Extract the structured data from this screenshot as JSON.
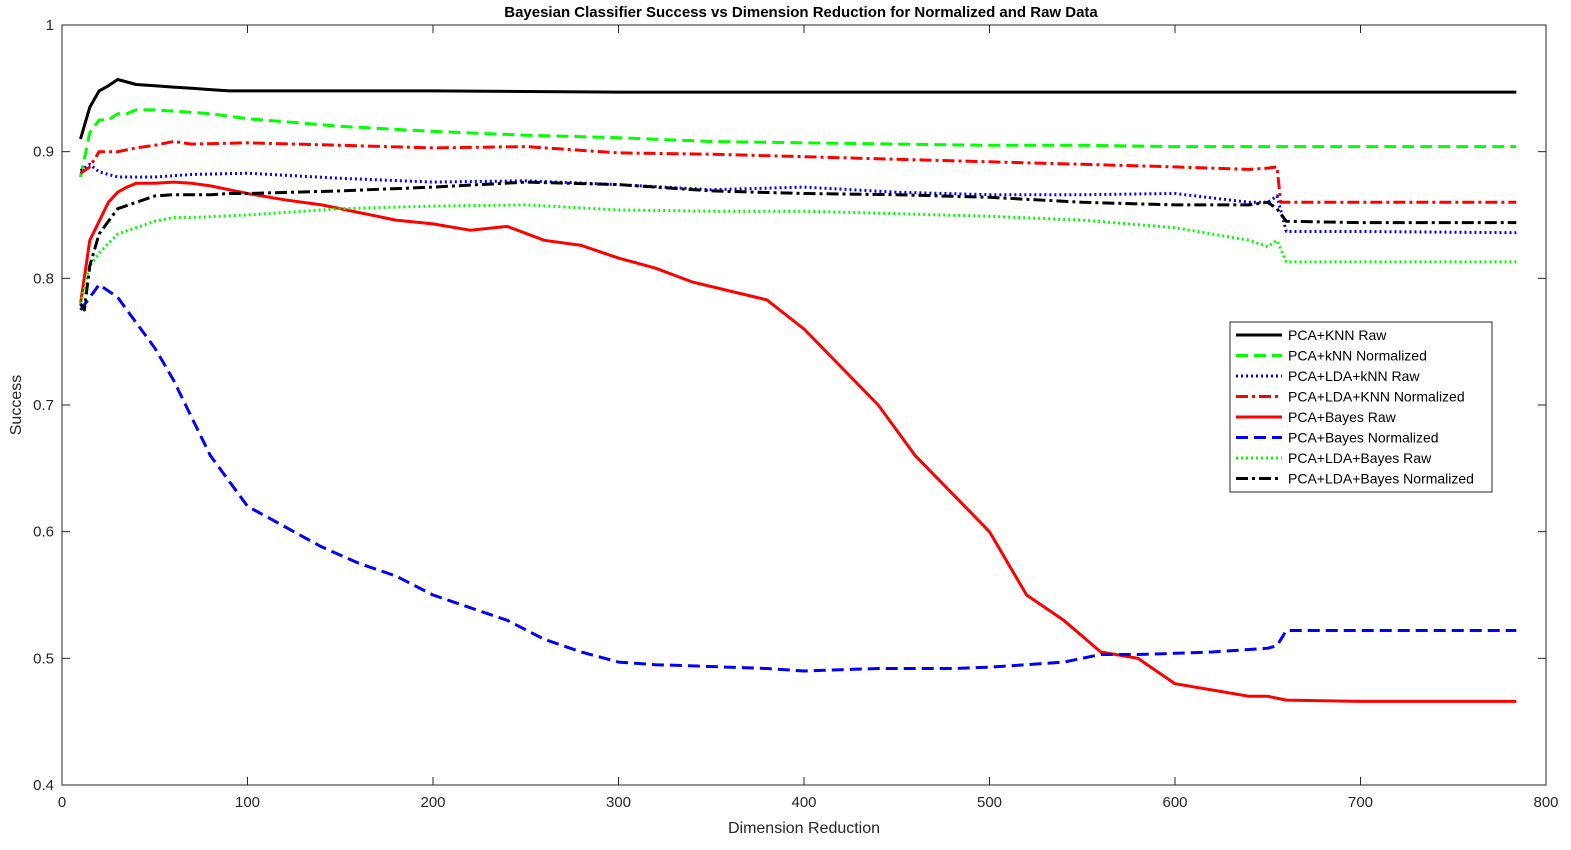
{
  "chart_data": {
    "type": "line",
    "title": "Bayesian Classifier Success vs Dimension Reduction for Normalized and Raw Data",
    "xlabel": "Dimension Reduction",
    "ylabel": "Success",
    "xlim": [
      0,
      800
    ],
    "ylim": [
      0.4,
      1
    ],
    "xticks": [
      0,
      100,
      200,
      300,
      400,
      500,
      600,
      700,
      800
    ],
    "yticks": [
      0.4,
      0.5,
      0.6,
      0.7,
      0.8,
      0.9,
      1
    ],
    "xtick_labels": [
      "0",
      "100",
      "200",
      "300",
      "400",
      "500",
      "600",
      "700",
      "800"
    ],
    "ytick_labels": [
      "0.4",
      "0.5",
      "0.6",
      "0.7",
      "0.8",
      "0.9",
      "1"
    ],
    "grid": false,
    "legend_position": "right",
    "series": [
      {
        "name": "PCA+KNN Raw",
        "color": "#000000",
        "style": "solid",
        "x": [
          10,
          15,
          20,
          25,
          30,
          35,
          40,
          50,
          60,
          70,
          80,
          90,
          100,
          150,
          200,
          300,
          400,
          500,
          600,
          700,
          784
        ],
        "y": [
          0.91,
          0.935,
          0.948,
          0.952,
          0.957,
          0.955,
          0.953,
          0.952,
          0.951,
          0.95,
          0.949,
          0.948,
          0.948,
          0.948,
          0.948,
          0.947,
          0.947,
          0.947,
          0.947,
          0.947,
          0.947
        ]
      },
      {
        "name": "PCA+kNN Normalized",
        "color": "#00ff00",
        "style": "dashed",
        "x": [
          10,
          15,
          20,
          25,
          30,
          35,
          40,
          50,
          60,
          70,
          80,
          100,
          150,
          200,
          250,
          300,
          350,
          400,
          450,
          500,
          550,
          600,
          650,
          700,
          784
        ],
        "y": [
          0.88,
          0.915,
          0.925,
          0.925,
          0.93,
          0.93,
          0.933,
          0.933,
          0.932,
          0.931,
          0.93,
          0.926,
          0.92,
          0.916,
          0.913,
          0.911,
          0.908,
          0.907,
          0.906,
          0.905,
          0.905,
          0.904,
          0.904,
          0.904,
          0.904
        ]
      },
      {
        "name": "PCA+LDA+kNN Raw",
        "color": "#0000ff",
        "style": "dotted",
        "x": [
          10,
          15,
          20,
          30,
          50,
          70,
          100,
          150,
          200,
          250,
          300,
          350,
          400,
          450,
          500,
          550,
          600,
          640,
          650,
          655,
          660,
          700,
          784
        ],
        "y": [
          0.885,
          0.89,
          0.884,
          0.88,
          0.88,
          0.882,
          0.883,
          0.879,
          0.876,
          0.877,
          0.874,
          0.87,
          0.872,
          0.868,
          0.866,
          0.866,
          0.867,
          0.86,
          0.86,
          0.865,
          0.837,
          0.837,
          0.836
        ]
      },
      {
        "name": "PCA+LDA+KNN Normalized",
        "color": "#ff0000",
        "style": "dashdot",
        "x": [
          10,
          15,
          20,
          30,
          40,
          50,
          60,
          70,
          100,
          150,
          200,
          250,
          300,
          350,
          400,
          450,
          500,
          550,
          600,
          640,
          650,
          655,
          657,
          700,
          784
        ],
        "y": [
          0.883,
          0.888,
          0.9,
          0.9,
          0.903,
          0.905,
          0.908,
          0.906,
          0.907,
          0.905,
          0.903,
          0.904,
          0.899,
          0.898,
          0.896,
          0.894,
          0.892,
          0.89,
          0.888,
          0.886,
          0.887,
          0.888,
          0.86,
          0.86,
          0.86
        ]
      },
      {
        "name": "PCA+Bayes Raw",
        "color": "#ff0000",
        "style": "solid",
        "x": [
          10,
          15,
          20,
          25,
          30,
          35,
          40,
          50,
          60,
          70,
          80,
          90,
          100,
          120,
          140,
          160,
          180,
          200,
          220,
          240,
          260,
          280,
          300,
          320,
          340,
          360,
          380,
          400,
          420,
          440,
          460,
          480,
          500,
          520,
          540,
          560,
          580,
          600,
          620,
          640,
          650,
          660,
          700,
          750,
          784
        ],
        "y": [
          0.78,
          0.83,
          0.845,
          0.86,
          0.868,
          0.872,
          0.875,
          0.875,
          0.876,
          0.875,
          0.873,
          0.87,
          0.867,
          0.862,
          0.858,
          0.852,
          0.846,
          0.843,
          0.838,
          0.841,
          0.83,
          0.826,
          0.816,
          0.808,
          0.797,
          0.79,
          0.783,
          0.76,
          0.73,
          0.7,
          0.66,
          0.63,
          0.6,
          0.55,
          0.53,
          0.505,
          0.5,
          0.48,
          0.475,
          0.47,
          0.47,
          0.467,
          0.466,
          0.466,
          0.466
        ]
      },
      {
        "name": "PCA+Bayes Normalized",
        "color": "#0000ff",
        "style": "dashed",
        "x": [
          10,
          15,
          20,
          25,
          30,
          35,
          40,
          50,
          60,
          70,
          80,
          90,
          100,
          120,
          140,
          160,
          180,
          200,
          220,
          240,
          260,
          280,
          300,
          320,
          340,
          360,
          380,
          400,
          420,
          440,
          460,
          480,
          500,
          520,
          540,
          560,
          580,
          600,
          620,
          640,
          650,
          655,
          660,
          700,
          750,
          784
        ],
        "y": [
          0.775,
          0.785,
          0.795,
          0.79,
          0.785,
          0.775,
          0.765,
          0.745,
          0.72,
          0.69,
          0.66,
          0.64,
          0.62,
          0.604,
          0.588,
          0.575,
          0.565,
          0.55,
          0.54,
          0.53,
          0.515,
          0.505,
          0.497,
          0.495,
          0.494,
          0.493,
          0.492,
          0.49,
          0.491,
          0.492,
          0.492,
          0.492,
          0.493,
          0.495,
          0.497,
          0.503,
          0.503,
          0.504,
          0.505,
          0.507,
          0.508,
          0.51,
          0.522,
          0.522,
          0.522,
          0.522
        ]
      },
      {
        "name": "PCA+LDA+Bayes Raw",
        "color": "#00ff00",
        "style": "dotted",
        "x": [
          10,
          15,
          20,
          30,
          40,
          50,
          60,
          70,
          100,
          150,
          200,
          250,
          300,
          350,
          400,
          450,
          500,
          550,
          600,
          620,
          640,
          650,
          655,
          660,
          700,
          784
        ],
        "y": [
          0.78,
          0.81,
          0.82,
          0.835,
          0.84,
          0.845,
          0.848,
          0.848,
          0.85,
          0.855,
          0.857,
          0.858,
          0.854,
          0.853,
          0.853,
          0.851,
          0.849,
          0.846,
          0.84,
          0.835,
          0.83,
          0.825,
          0.83,
          0.813,
          0.813,
          0.813
        ]
      },
      {
        "name": "PCA+LDA+Bayes Normalized",
        "color": "#000000",
        "style": "dashdot",
        "x": [
          10,
          12,
          15,
          20,
          25,
          30,
          40,
          50,
          60,
          70,
          80,
          90,
          100,
          150,
          200,
          250,
          300,
          350,
          400,
          450,
          500,
          550,
          600,
          640,
          650,
          655,
          660,
          700,
          784
        ],
        "y": [
          0.78,
          0.775,
          0.81,
          0.835,
          0.845,
          0.855,
          0.86,
          0.865,
          0.866,
          0.866,
          0.866,
          0.867,
          0.867,
          0.869,
          0.872,
          0.876,
          0.874,
          0.869,
          0.867,
          0.866,
          0.864,
          0.86,
          0.858,
          0.858,
          0.86,
          0.855,
          0.845,
          0.844,
          0.844
        ]
      }
    ]
  }
}
